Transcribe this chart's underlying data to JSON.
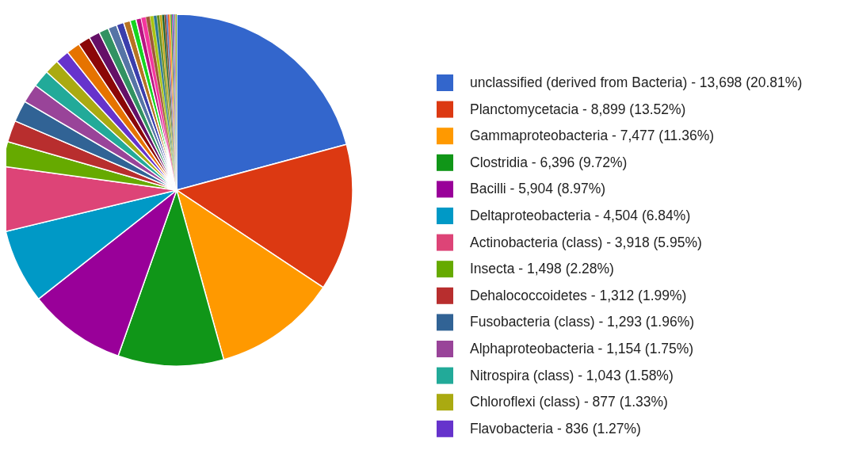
{
  "chart_data": {
    "type": "pie",
    "legend": "right",
    "categories": [
      "unclassified (derived from Bacteria)",
      "Planctomycetacia",
      "Gammaproteobacteria",
      "Clostridia",
      "Bacilli",
      "Deltaproteobacteria",
      "Actinobacteria (class)",
      "Insecta",
      "Dehalococcoidetes",
      "Fusobacteria (class)",
      "Alphaproteobacteria",
      "Nitrospira (class)",
      "Chloroflexi (class)",
      "Flavobacteria",
      null,
      null,
      null,
      null,
      null,
      null,
      null,
      null,
      null,
      null,
      null,
      null,
      null,
      null,
      null,
      null,
      null,
      null,
      null,
      null,
      null,
      null,
      null,
      null,
      null
    ],
    "values": [
      13698,
      8899,
      7477,
      6396,
      5904,
      4504,
      3918,
      1498,
      1312,
      1293,
      1154,
      1043,
      877,
      836,
      830,
      740,
      660,
      590,
      530,
      450,
      400,
      360,
      320,
      280,
      250,
      220,
      190,
      170,
      150,
      130,
      110,
      95,
      90,
      85,
      80,
      75,
      70,
      70,
      70
    ],
    "value_labels": [
      "13,698 (20.81%)",
      "8,899 (13.52%)",
      "7,477 (11.36%)",
      "6,396 (9.72%)",
      "5,904 (8.97%)",
      "4,504 (6.84%)",
      "3,918 (5.95%)",
      "1,498 (2.28%)",
      "1,312 (1.99%)",
      "1,293 (1.96%)",
      "1,154 (1.75%)",
      "1,043 (1.58%)",
      "877 (1.33%)",
      "836 (1.27%)",
      null,
      null,
      null,
      null,
      null,
      null,
      null,
      null,
      null,
      null,
      null,
      null,
      null,
      null,
      null,
      null,
      null,
      null,
      null,
      null,
      null,
      null,
      null,
      null,
      null
    ],
    "colors": [
      "#3366cc",
      "#dc3912",
      "#ff9900",
      "#109618",
      "#990099",
      "#0099c6",
      "#dd4477",
      "#66aa00",
      "#b82e2e",
      "#316395",
      "#994499",
      "#22aa99",
      "#aaaa11",
      "#6633cc",
      "#e67300",
      "#8b0707",
      "#651067",
      "#329262",
      "#5574a6",
      "#3b3eac",
      "#b77322",
      "#16d620",
      "#b91383",
      "#f4359e",
      "#9c5935",
      "#a9c413",
      "#2a778d",
      "#668d1c",
      "#bea413",
      "#0c5922",
      "#743411",
      "#3366cc",
      "#dc3912",
      "#ff9900",
      "#109618",
      "#990099",
      "#0099c6",
      "#dd4477",
      "#66aa00"
    ]
  }
}
